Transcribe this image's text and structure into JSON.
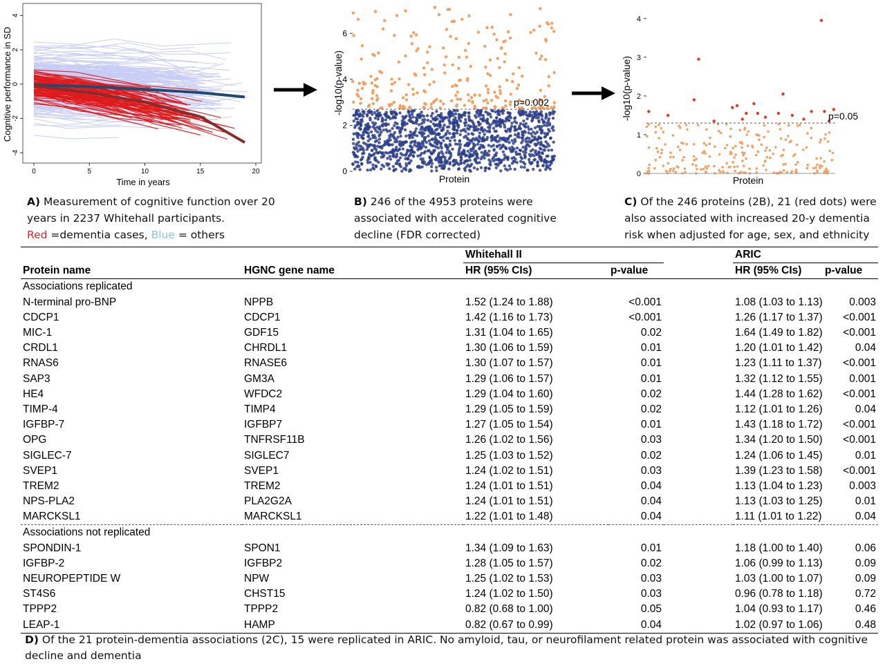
{
  "panels": {
    "a": {
      "caption_letter": "A)",
      "caption_text": " Measurement of cognitive function over 20 years in 2237 Whitehall participants.",
      "legend_red": "Red",
      "legend_red_text": " =dementia cases, ",
      "legend_blue": "Blue",
      "legend_blue_text": " = others"
    },
    "b": {
      "caption_letter": "B)",
      "caption_text": " 246 of the 4953 proteins were associated with accelerated cognitive decline (FDR corrected)"
    },
    "c": {
      "caption_letter": "C)",
      "caption_text": " Of the 246 proteins (2B), 21 (red dots) were also associated with increased 20-y dementia risk when adjusted for age, sex, and ethnicity"
    }
  },
  "colors": {
    "dementia": "#e01b1b",
    "others": "#c8cdf5",
    "mean_others": "#1e4a73",
    "mean_dementia": "#8b2a2a",
    "sig_orange": "#f4a060",
    "nonsig_navy": "#2b3e8a",
    "replicated_red": "#e03a2a"
  },
  "chart_data": [
    {
      "type": "line",
      "panel": "A",
      "xlabel": "Time in years",
      "ylabel": "Cognitive performance in SD",
      "xlim": [
        -1,
        20.5
      ],
      "ylim": [
        -4.6,
        4.7
      ],
      "xticks": [
        0,
        5,
        10,
        15,
        20
      ],
      "yticks": [
        -4,
        -2,
        0,
        2,
        4
      ],
      "series": [
        {
          "role": "mean-others",
          "x": [
            0,
            5,
            10,
            15,
            19
          ],
          "y": [
            -0.05,
            -0.15,
            -0.3,
            -0.5,
            -0.75
          ]
        },
        {
          "role": "mean-dementia",
          "x": [
            0,
            5,
            10,
            15,
            19
          ],
          "y": [
            -0.1,
            -0.5,
            -1.05,
            -1.9,
            -3.4
          ]
        }
      ]
    },
    {
      "type": "scatter",
      "panel": "B",
      "xlabel": "Protein",
      "ylabel": "-log10(p-value)",
      "ylim": [
        0,
        7.3
      ],
      "yticks": [
        0,
        2,
        4,
        6
      ],
      "threshold": 2.7,
      "threshold_label": "p=0.002",
      "n_points": 4953,
      "n_significant": 246
    },
    {
      "type": "scatter",
      "panel": "C",
      "xlabel": "Protein",
      "ylabel": "-log10(p-value)",
      "ylim": [
        0,
        4.3
      ],
      "yticks": [
        0,
        1,
        2,
        3,
        4
      ],
      "threshold": 1.3,
      "threshold_label": "p=0.05",
      "n_points": 246,
      "n_significant": 21,
      "significant_points": [
        {
          "x": 3,
          "y": 1.6
        },
        {
          "x": 28,
          "y": 1.5
        },
        {
          "x": 62,
          "y": 1.9
        },
        {
          "x": 68,
          "y": 2.95
        },
        {
          "x": 88,
          "y": 1.35
        },
        {
          "x": 112,
          "y": 1.7
        },
        {
          "x": 118,
          "y": 1.75
        },
        {
          "x": 125,
          "y": 1.4
        },
        {
          "x": 130,
          "y": 1.55
        },
        {
          "x": 140,
          "y": 1.8
        },
        {
          "x": 145,
          "y": 1.55
        },
        {
          "x": 155,
          "y": 1.45
        },
        {
          "x": 172,
          "y": 1.55
        },
        {
          "x": 178,
          "y": 2.05
        },
        {
          "x": 190,
          "y": 1.5
        },
        {
          "x": 205,
          "y": 1.4
        },
        {
          "x": 215,
          "y": 1.6
        },
        {
          "x": 228,
          "y": 3.95
        },
        {
          "x": 232,
          "y": 1.6
        },
        {
          "x": 238,
          "y": 1.35
        },
        {
          "x": 244,
          "y": 1.65
        }
      ]
    }
  ],
  "table": {
    "headers": {
      "protein": "Protein name",
      "gene": "HGNC gene name",
      "whitehall": "Whitehall II",
      "aric": "ARIC",
      "hr": "HR (95% CIs)",
      "p": "p-value"
    },
    "sections": [
      {
        "title": "Associations replicated",
        "rows": [
          {
            "protein": "N-terminal pro-BNP",
            "gene": "NPPB",
            "wh_hr": "1.52 (1.24 to 1.88)",
            "wh_p": "<0.001",
            "ar_hr": "1.08 (1.03 to 1.13)",
            "ar_p": "0.003"
          },
          {
            "protein": "CDCP1",
            "gene": "CDCP1",
            "wh_hr": "1.42 (1.16 to 1.73)",
            "wh_p": "<0.001",
            "ar_hr": "1.26 (1.17 to 1.37)",
            "ar_p": "<0.001"
          },
          {
            "protein": "MIC-1",
            "gene": "GDF15",
            "wh_hr": "1.31 (1.04 to 1.65)",
            "wh_p": "0.02",
            "ar_hr": "1.64 (1.49 to 1.82)",
            "ar_p": "<0.001"
          },
          {
            "protein": "CRDL1",
            "gene": "CHRDL1",
            "wh_hr": "1.30 (1.06 to 1.59)",
            "wh_p": "0.01",
            "ar_hr": "1.20 (1.01 to 1.42)",
            "ar_p": "0.04"
          },
          {
            "protein": "RNAS6",
            "gene": "RNASE6",
            "wh_hr": "1.30 (1.07 to 1.57)",
            "wh_p": "0.01",
            "ar_hr": "1.23 (1.11 to 1.37)",
            "ar_p": "<0.001"
          },
          {
            "protein": "SAP3",
            "gene": "GM3A",
            "wh_hr": "1.29 (1.06 to 1.57)",
            "wh_p": "0.01",
            "ar_hr": "1.32 (1.12 to 1.55)",
            "ar_p": "0.001"
          },
          {
            "protein": "HE4",
            "gene": "WFDC2",
            "wh_hr": "1.29 (1.04 to 1.60)",
            "wh_p": "0.02",
            "ar_hr": "1.44 (1.28 to 1.62)",
            "ar_p": "<0.001"
          },
          {
            "protein": "TIMP-4",
            "gene": "TIMP4",
            "wh_hr": "1.29 (1.05 to 1.59)",
            "wh_p": "0.02",
            "ar_hr": "1.12 (1.01 to 1.26)",
            "ar_p": "0.04"
          },
          {
            "protein": "IGFBP-7",
            "gene": "IGFBP7",
            "wh_hr": "1.27 (1.05 to 1.54)",
            "wh_p": "0.01",
            "ar_hr": "1.43 (1.18 to 1.72)",
            "ar_p": "<0.001"
          },
          {
            "protein": "OPG",
            "gene": "TNFRSF11B",
            "wh_hr": "1.26 (1.02 to 1.56)",
            "wh_p": "0.03",
            "ar_hr": "1.34 (1.20 to 1.50)",
            "ar_p": "<0.001"
          },
          {
            "protein": "SIGLEC-7",
            "gene": "SIGLEC7",
            "wh_hr": "1.25 (1.03 to 1.52)",
            "wh_p": "0.02",
            "ar_hr": "1.24 (1.06 to 1.45)",
            "ar_p": "0.01"
          },
          {
            "protein": "SVEP1",
            "gene": "SVEP1",
            "wh_hr": "1.24 (1.02 to 1.51)",
            "wh_p": "0.03",
            "ar_hr": "1.39 (1.23 to 1.58)",
            "ar_p": "<0.001"
          },
          {
            "protein": "TREM2",
            "gene": "TREM2",
            "wh_hr": "1.24 (1.01 to 1.51)",
            "wh_p": "0.04",
            "ar_hr": "1.13 (1.04 to 1.23)",
            "ar_p": "0.003"
          },
          {
            "protein": "NPS-PLA2",
            "gene": "PLA2G2A",
            "wh_hr": "1.24 (1.01 to 1.51)",
            "wh_p": "0.04",
            "ar_hr": "1.13 (1.03 to 1.25)",
            "ar_p": "0.01"
          },
          {
            "protein": "MARCKSL1",
            "gene": "MARCKSL1",
            "wh_hr": "1.22 (1.01 to 1.48)",
            "wh_p": "0.04",
            "ar_hr": "1.11 (1.01 to 1.22)",
            "ar_p": "0.04"
          }
        ]
      },
      {
        "title": "Associations not replicated",
        "rows": [
          {
            "protein": "SPONDIN-1",
            "gene": "SPON1",
            "wh_hr": "1.34 (1.09 to 1.63)",
            "wh_p": "0.01",
            "ar_hr": "1.18 (1.00 to 1.40)",
            "ar_p": "0.06"
          },
          {
            "protein": "IGFBP-2",
            "gene": "IGFBP2",
            "wh_hr": "1.28 (1.05 to 1.57)",
            "wh_p": "0.02",
            "ar_hr": "1.06 (0.99 to 1.13)",
            "ar_p": "0.09"
          },
          {
            "protein": "NEUROPEPTIDE W",
            "gene": "NPW",
            "wh_hr": "1.25 (1.02 to 1.53)",
            "wh_p": "0.03",
            "ar_hr": "1.03 (1.00 to 1.07)",
            "ar_p": "0.09"
          },
          {
            "protein": "ST4S6",
            "gene": "CHST15",
            "wh_hr": "1.24 (1.02 to 1.50)",
            "wh_p": "0.03",
            "ar_hr": "0.96 (0.78 to 1.18)",
            "ar_p": "0.72"
          },
          {
            "protein": "TPPP2",
            "gene": "TPPP2",
            "wh_hr": "0.82 (0.68 to 1.00)",
            "wh_p": "0.05",
            "ar_hr": "1.04 (0.93 to 1.17)",
            "ar_p": "0.46"
          },
          {
            "protein": "LEAP-1",
            "gene": "HAMP",
            "wh_hr": "0.82 (0.67 to 0.99)",
            "wh_p": "0.04",
            "ar_hr": "1.02 (0.97 to 1.06)",
            "ar_p": "0.48"
          }
        ]
      }
    ]
  },
  "panel_d": {
    "caption_letter": "D)",
    "caption_text": " Of the 21 protein-dementia associations (2C), 15 were replicated in ARIC. No amyloid, tau, or neurofilament related protein was associated with cognitive decline and dementia"
  }
}
